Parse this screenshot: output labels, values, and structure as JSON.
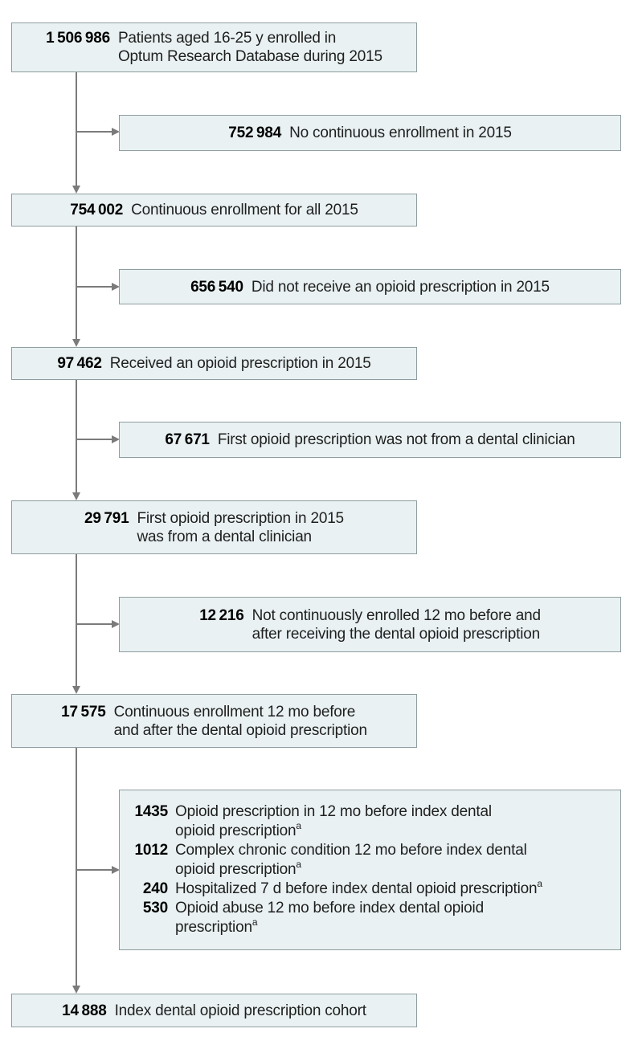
{
  "figure": {
    "type": "patient-flow-diagram",
    "colors": {
      "box_fill": "#e9f1f2",
      "box_border": "#8e9da0",
      "arrow": "#7b7b7b",
      "text": "#1f1f1f"
    },
    "steps": [
      {
        "number": "1 506 986",
        "lines": [
          "Patients aged 16-25 y enrolled in",
          "Optum Research Database during 2015"
        ]
      },
      {
        "number": "754 002",
        "lines": [
          "Continuous enrollment for all 2015"
        ]
      },
      {
        "number": "97 462",
        "lines": [
          "Received an opioid prescription in 2015"
        ]
      },
      {
        "number": "29 791",
        "lines": [
          "First opioid prescription in 2015",
          "was from a dental clinician"
        ]
      },
      {
        "number": "17 575",
        "lines": [
          "Continuous enrollment 12 mo before",
          "and after the dental opioid prescription"
        ]
      },
      {
        "number": "14 888",
        "lines": [
          "Index dental opioid prescription cohort"
        ]
      }
    ],
    "exclusions": [
      {
        "number": "752 984",
        "lines": [
          "No continuous enrollment in 2015"
        ]
      },
      {
        "number": "656 540",
        "lines": [
          "Did not receive an opioid prescription in 2015"
        ]
      },
      {
        "number": "67 671",
        "lines": [
          "First opioid prescription was not from a dental clinician"
        ]
      },
      {
        "number": "12 216",
        "lines": [
          "Not continuously enrolled 12 mo before and",
          "after receiving the dental opioid prescription"
        ]
      },
      {
        "items": [
          {
            "number": "1435",
            "lines": [
              "Opioid prescription in 12 mo before index dental",
              "opioid prescription"
            ],
            "marker": "a"
          },
          {
            "number": "1012",
            "lines": [
              "Complex chronic condition 12 mo before index dental",
              "opioid prescription"
            ],
            "marker": "a"
          },
          {
            "number": "240",
            "lines": [
              "Hospitalized 7 d before index dental opioid prescription"
            ],
            "marker": "a"
          },
          {
            "number": "530",
            "lines": [
              "Opioid abuse 12 mo before index dental opioid",
              "prescription"
            ],
            "marker": "a"
          }
        ]
      }
    ]
  }
}
